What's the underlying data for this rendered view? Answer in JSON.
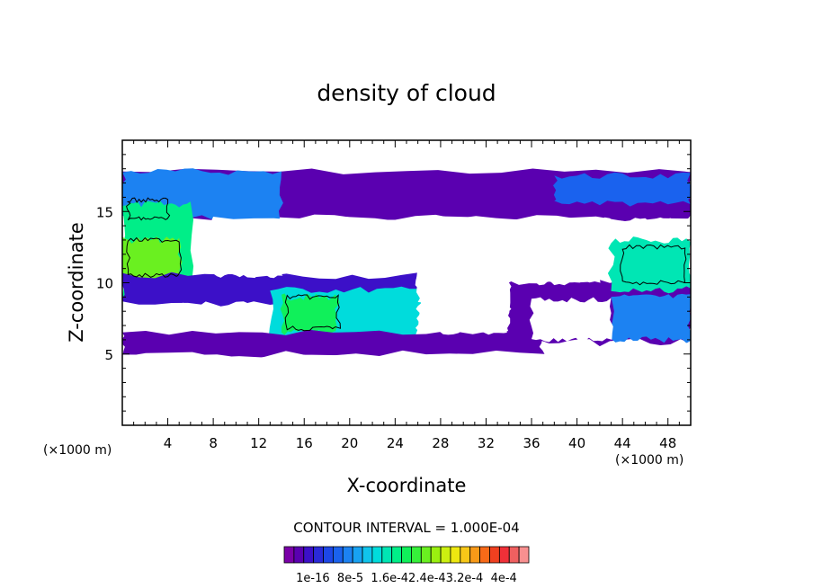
{
  "chart_data": {
    "type": "heatmap",
    "title": "density of cloud",
    "xlabel": "X-coordinate",
    "ylabel": "Z-coordinate",
    "x_unit_label": "(×1000 m)",
    "x_unit_label_right": "(×1000 m)",
    "xlim": [
      0,
      50
    ],
    "ylim": [
      0,
      20
    ],
    "x_ticks": [
      4,
      8,
      12,
      16,
      20,
      24,
      28,
      32,
      36,
      40,
      44,
      48
    ],
    "x_tick_labels": [
      "4",
      "8",
      "12",
      "16",
      "20",
      "24",
      "28",
      "32",
      "36",
      "40",
      "44",
      "48"
    ],
    "y_ticks": [
      5,
      10,
      15
    ],
    "y_tick_labels": [
      "5",
      "10",
      "15"
    ],
    "contour_interval_text": "CONTOUR INTERVAL = 1.000E-04",
    "colorbar": {
      "colors": [
        "#7a00a8",
        "#5a00b0",
        "#3c10c8",
        "#2a2ad8",
        "#1d47e6",
        "#1a62ee",
        "#1c82f2",
        "#18a2f2",
        "#10c4ec",
        "#00dcdc",
        "#00e6b4",
        "#00ee88",
        "#10f05a",
        "#36f03a",
        "#6af020",
        "#9af010",
        "#ccf010",
        "#eee810",
        "#f8c818",
        "#f89a18",
        "#f86a18",
        "#f04020",
        "#f03038",
        "#f06060",
        "#f89090"
      ],
      "labels": [
        "1e-16",
        "8e-5",
        "1.6e-4",
        "2.4e-4",
        "3.2e-4",
        "4e-4"
      ],
      "label_text": "1e-16  8e-5  1.6e-42.4e-43.2e-4  4e-4"
    },
    "regions": [
      {
        "name": "upper-band",
        "x0": 0,
        "x1": 50,
        "z0": 14.5,
        "z1": 17.8,
        "level": 1
      },
      {
        "name": "upper-left-dense",
        "x0": 0,
        "x1": 14,
        "z0": 14.5,
        "z1": 17.8,
        "level": 6
      },
      {
        "name": "upper-right-dense",
        "x0": 38,
        "x1": 50,
        "z0": 15.5,
        "z1": 17.5,
        "level": 5
      },
      {
        "name": "left-column",
        "x0": 0,
        "x1": 6,
        "z0": 9,
        "z1": 15.5,
        "level": 11
      },
      {
        "name": "left-core",
        "x0": 0,
        "x1": 5,
        "z0": 10,
        "z1": 13,
        "level": 14
      },
      {
        "name": "mid-left-band",
        "x0": 0,
        "x1": 26,
        "z0": 8.5,
        "z1": 10.5,
        "level": 2
      },
      {
        "name": "mid-cell",
        "x0": 13,
        "x1": 26,
        "z0": 5.5,
        "z1": 9.5,
        "level": 9
      },
      {
        "name": "mid-cell-core",
        "x0": 14,
        "x1": 19,
        "z0": 6.5,
        "z1": 9,
        "level": 12
      },
      {
        "name": "lower-band",
        "x0": 0,
        "x1": 37,
        "z0": 5,
        "z1": 6.5,
        "level": 1
      },
      {
        "name": "right-band",
        "x0": 34,
        "x1": 50,
        "z0": 5.8,
        "z1": 10,
        "level": 1
      },
      {
        "name": "right-cell",
        "x0": 43,
        "x1": 50,
        "z0": 9.5,
        "z1": 13,
        "level": 10
      },
      {
        "name": "right-lower-cell",
        "x0": 43,
        "x1": 50,
        "z0": 6,
        "z1": 9,
        "level": 6
      }
    ]
  }
}
